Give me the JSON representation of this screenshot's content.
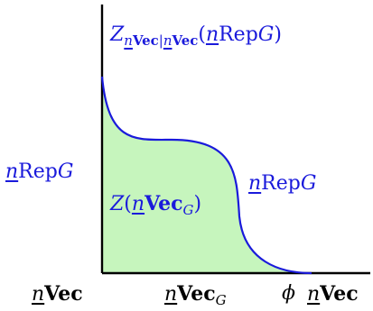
{
  "colors": {
    "axis": "#000000",
    "curve": "#1a1adb",
    "fill": "#c6f5bd",
    "label_blue": "#1a1adb",
    "label_black": "#000000"
  },
  "labels": {
    "top": {
      "z": "Z",
      "sub_n1": "n",
      "sub_vec1": "Vec",
      "sub_sep": "|",
      "sub_n2": "n",
      "sub_vec2": "Vec",
      "open": "(",
      "n": "n",
      "rep": "Rep",
      "g": "G",
      "close": ")"
    },
    "left": {
      "n": "n",
      "rep": "Rep",
      "g": "G"
    },
    "right": {
      "n": "n",
      "rep": "Rep",
      "g": "G"
    },
    "center": {
      "z": "Z",
      "open": "(",
      "n": "n",
      "vec": "Vec",
      "g": "G",
      "close": ")"
    },
    "bottom_left": {
      "n": "n",
      "vec": "Vec"
    },
    "bottom_mid": {
      "n": "n",
      "vec": "Vec",
      "g": "G"
    },
    "bottom_phi": "ϕ",
    "bottom_right": {
      "n": "n",
      "vec": "Vec"
    }
  }
}
